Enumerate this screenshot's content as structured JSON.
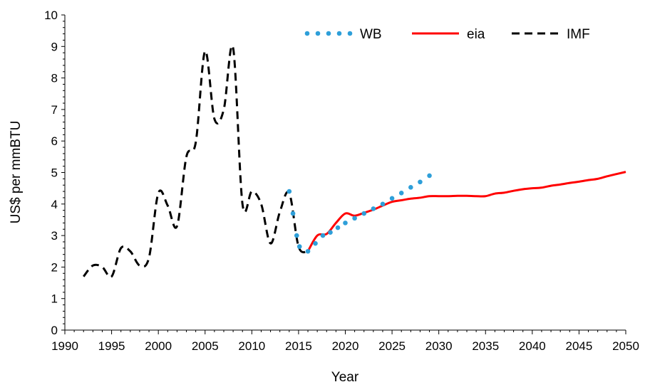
{
  "chart_data": {
    "type": "line",
    "xlabel": "Year",
    "ylabel": "US$ per mmBTU",
    "xlim": [
      1990,
      2050
    ],
    "ylim": [
      0,
      10
    ],
    "x_ticks": [
      "1990",
      "1995",
      "2000",
      "2005",
      "2010",
      "2015",
      "2020",
      "2025",
      "2030",
      "2035",
      "2040",
      "2045",
      "2050"
    ],
    "y_ticks": [
      "0",
      "1",
      "2",
      "3",
      "4",
      "5",
      "6",
      "7",
      "8",
      "9",
      "10"
    ],
    "grid": false,
    "legend_position": "top-right",
    "series": [
      {
        "name": "WB",
        "style": "dotted",
        "color": "#2E9FD9",
        "x": [
          2014,
          2014.4,
          2014.8,
          2015.1,
          2016,
          2016.8,
          2017.6,
          2018.4,
          2019.2,
          2020,
          2021,
          2022,
          2023,
          2024,
          2025,
          2026,
          2027,
          2028,
          2029
        ],
        "y": [
          4.4,
          3.7,
          3.0,
          2.65,
          2.5,
          2.75,
          3.0,
          3.1,
          3.25,
          3.4,
          3.55,
          3.7,
          3.85,
          4.0,
          4.18,
          4.35,
          4.53,
          4.7,
          4.9
        ]
      },
      {
        "name": "eia",
        "style": "solid",
        "color": "#FF0000",
        "x": [
          2016,
          2017,
          2018,
          2019,
          2020,
          2021,
          2022,
          2023,
          2024,
          2025,
          2026,
          2027,
          2028,
          2029,
          2030,
          2031,
          2032,
          2033,
          2034,
          2035,
          2036,
          2037,
          2038,
          2039,
          2040,
          2041,
          2042,
          2043,
          2044,
          2045,
          2046,
          2047,
          2048,
          2049,
          2050
        ],
        "y": [
          2.5,
          3.0,
          3.05,
          3.4,
          3.7,
          3.63,
          3.72,
          3.82,
          3.95,
          4.07,
          4.12,
          4.17,
          4.2,
          4.25,
          4.25,
          4.25,
          4.26,
          4.26,
          4.25,
          4.25,
          4.33,
          4.36,
          4.42,
          4.47,
          4.5,
          4.52,
          4.58,
          4.62,
          4.67,
          4.71,
          4.76,
          4.8,
          4.88,
          4.95,
          5.02
        ]
      },
      {
        "name": "IMF",
        "style": "dashed",
        "color": "#000000",
        "x": [
          1992,
          1993,
          1994,
          1995,
          1996,
          1997,
          1998,
          1999,
          2000,
          2001,
          2002,
          2003,
          2004,
          2005,
          2006,
          2007,
          2008,
          2009,
          2010,
          2011,
          2012,
          2013,
          2014,
          2015,
          2016
        ],
        "y": [
          1.7,
          2.05,
          2.0,
          1.7,
          2.6,
          2.5,
          2.05,
          2.3,
          4.35,
          3.95,
          3.3,
          5.5,
          5.95,
          8.85,
          6.7,
          7.0,
          8.95,
          4.0,
          4.4,
          4.0,
          2.75,
          3.75,
          4.35,
          2.65,
          2.5
        ]
      }
    ]
  }
}
